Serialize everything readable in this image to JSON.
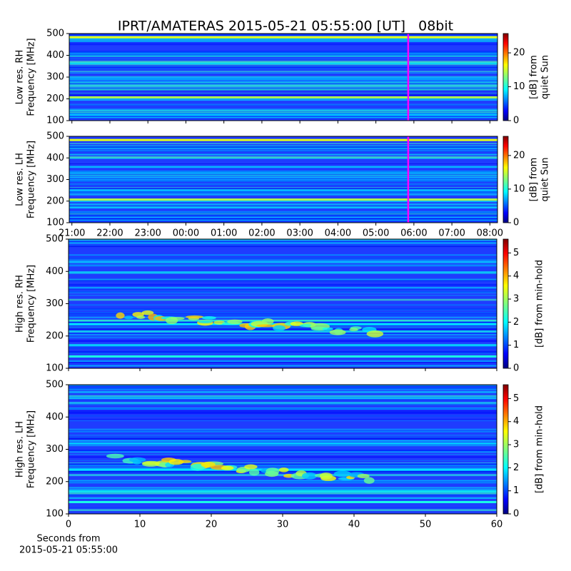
{
  "title": "IPRT/AMATERAS 2015-05-21 05:55:00 [UT]   08bit",
  "chart_data": [
    {
      "type": "heatmap",
      "ylabel": [
        "Low res. RH",
        "Frequency [MHz]"
      ],
      "xlim": [
        20.93,
        32.2
      ],
      "xticks": [
        21,
        22,
        23,
        24,
        25,
        26,
        27,
        28,
        29,
        30,
        31,
        32
      ],
      "xtick_labels": false,
      "ylim": [
        100,
        500
      ],
      "yticks": [
        100,
        200,
        300,
        400,
        500
      ],
      "cursor": 29.85,
      "cursor_color": "#ff00ff",
      "colorbar": {
        "label": [
          "[dB] from",
          "quiet Sun"
        ],
        "lim": [
          0,
          25.7
        ],
        "ticks": [
          0,
          10,
          20
        ]
      }
    },
    {
      "type": "heatmap",
      "ylabel": [
        "Low res. LH",
        "Frequency [MHz]"
      ],
      "xlim": [
        20.93,
        32.2
      ],
      "xticks": [
        {
          "value": 21,
          "label": "21:00"
        },
        {
          "value": 22,
          "label": "22:00"
        },
        {
          "value": 23,
          "label": "23:00"
        },
        {
          "value": 24,
          "label": "00:00"
        },
        {
          "value": 25,
          "label": "01:00"
        },
        {
          "value": 26,
          "label": "02:00"
        },
        {
          "value": 27,
          "label": "03:00"
        },
        {
          "value": 28,
          "label": "04:00"
        },
        {
          "value": 29,
          "label": "05:00"
        },
        {
          "value": 30,
          "label": "06:00"
        },
        {
          "value": 31,
          "label": "07:00"
        },
        {
          "value": 32,
          "label": "08:00"
        }
      ],
      "ylim": [
        100,
        500
      ],
      "yticks": [
        100,
        200,
        300,
        400,
        500
      ],
      "cursor": 29.85,
      "cursor_color": "#ff00ff",
      "colorbar": {
        "label": [
          "[dB] from",
          "quiet Sun"
        ],
        "lim": [
          0,
          25.7
        ],
        "ticks": [
          0,
          10,
          20
        ]
      }
    },
    {
      "type": "heatmap",
      "ylabel": [
        "High res. RH",
        "Frequency [MHz]"
      ],
      "xlim": [
        0,
        60
      ],
      "xticks": [
        0,
        10,
        20,
        30,
        40,
        50,
        60
      ],
      "xtick_labels": false,
      "ylim": [
        100,
        500
      ],
      "yticks": [
        100,
        200,
        300,
        400,
        500
      ],
      "colorbar": {
        "label": [
          "[dB] from min-hold"
        ],
        "lim": [
          0,
          5.6
        ],
        "ticks": [
          0,
          1,
          2,
          3,
          4,
          5
        ]
      }
    },
    {
      "type": "heatmap",
      "ylabel": [
        "High res. LH",
        "Frequency [MHz]"
      ],
      "xlabel": [
        "Seconds from",
        "2015-05-21 05:55:00"
      ],
      "xlim": [
        0,
        60
      ],
      "xticks": [
        0,
        10,
        20,
        30,
        40,
        50,
        60
      ],
      "ylim": [
        100,
        500
      ],
      "yticks": [
        100,
        200,
        300,
        400,
        500
      ],
      "colorbar": {
        "label": [
          "[dB] from min-hold"
        ],
        "lim": [
          0,
          5.6
        ],
        "ticks": [
          0,
          1,
          2,
          3,
          4,
          5
        ]
      }
    }
  ]
}
